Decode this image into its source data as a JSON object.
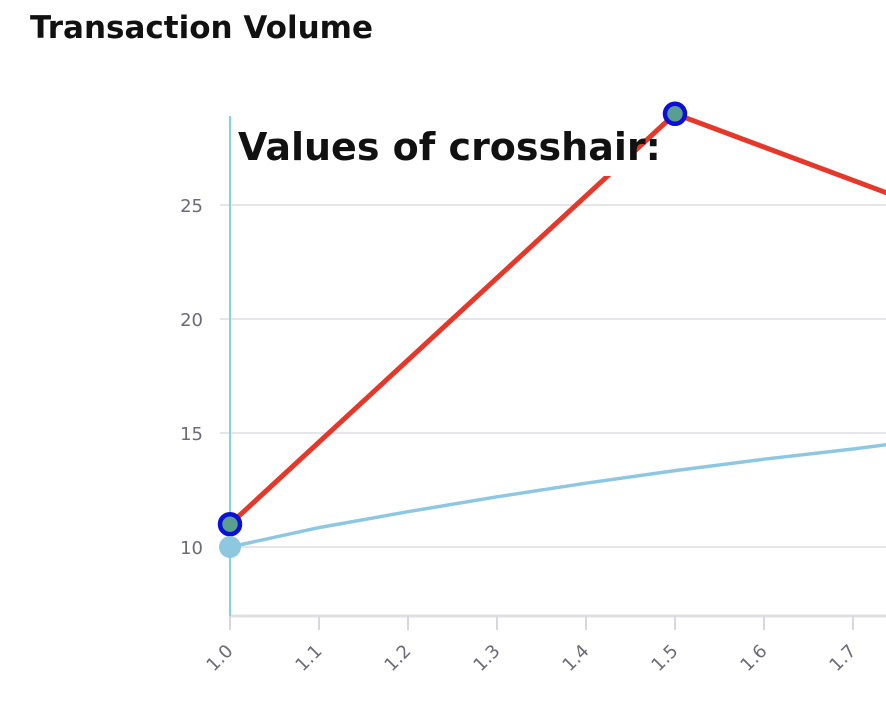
{
  "header": {
    "title": "Transaction Volume"
  },
  "crosshair": {
    "title": "Values of crosshair:",
    "x": 1.0,
    "color": "#7fd6d3"
  },
  "chart_data": {
    "type": "line",
    "title": "Transaction Volume",
    "xlabel": "",
    "ylabel": "",
    "xlim": [
      1.0,
      1.74
    ],
    "ylim": [
      7.0,
      29.0
    ],
    "x_ticks": [
      "1.0",
      "1.1",
      "1.2",
      "1.3",
      "1.4",
      "1.5",
      "1.6",
      "1.7"
    ],
    "y_ticks": [
      "10",
      "15",
      "20",
      "25"
    ],
    "grid": true,
    "series": [
      {
        "color": "#e3382a",
        "points": [
          {
            "x": 1.0,
            "y": 11.0
          },
          {
            "x": 1.5,
            "y": 29.0
          },
          {
            "x": 1.74,
            "y": 25.5
          }
        ],
        "markers": [
          {
            "x": 1.0,
            "y": 11.0
          },
          {
            "x": 1.5,
            "y": 29.0
          }
        ],
        "marker_stroke": "#0a10d8",
        "marker_fill": "#5a9e8f"
      },
      {
        "color": "#8ec7e0",
        "points": [
          {
            "x": 1.0,
            "y": 10.0
          },
          {
            "x": 1.1,
            "y": 10.85
          },
          {
            "x": 1.2,
            "y": 11.55
          },
          {
            "x": 1.3,
            "y": 12.2
          },
          {
            "x": 1.4,
            "y": 12.8
          },
          {
            "x": 1.5,
            "y": 13.35
          },
          {
            "x": 1.6,
            "y": 13.85
          },
          {
            "x": 1.7,
            "y": 14.3
          },
          {
            "x": 1.74,
            "y": 14.5
          }
        ],
        "markers": [
          {
            "x": 1.0,
            "y": 10.0
          }
        ],
        "marker_stroke": "#8ec7e0",
        "marker_fill": "#8ec7e0"
      }
    ]
  }
}
